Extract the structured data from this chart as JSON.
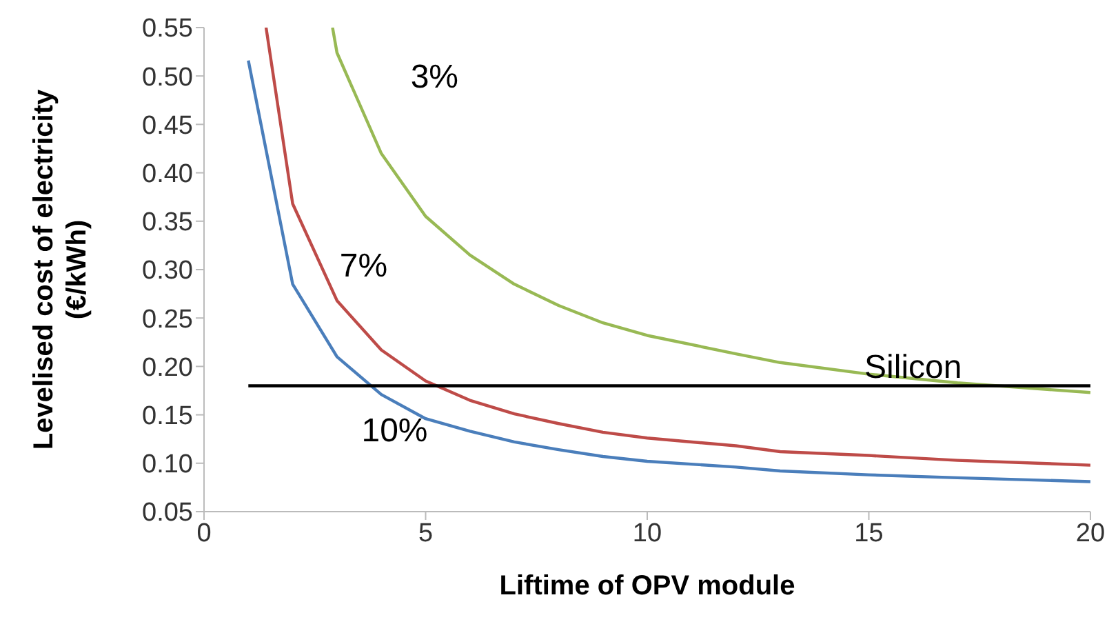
{
  "chart_data": {
    "type": "line",
    "xlabel": "Liftime of OPV module",
    "ylabel": "Levelised cost of electricity (€/kWh)",
    "xlim": [
      0,
      20
    ],
    "xticks": [
      0,
      5,
      10,
      15,
      20
    ],
    "ylim": [
      0.05,
      0.55
    ],
    "yticks": [
      {
        "value": 0.05,
        "label": "0.05"
      },
      {
        "value": 0.1,
        "label": "0.10"
      },
      {
        "value": 0.15,
        "label": "0.15"
      },
      {
        "value": 0.2,
        "label": "0.20"
      },
      {
        "value": 0.25,
        "label": "0.25"
      },
      {
        "value": 0.3,
        "label": "0.30"
      },
      {
        "value": 0.35,
        "label": "0.35"
      },
      {
        "value": 0.4,
        "label": "0.40"
      },
      {
        "value": 0.45,
        "label": "0.45"
      },
      {
        "value": 0.5,
        "label": "0.50"
      },
      {
        "value": 0.55,
        "label": "0.55"
      }
    ],
    "grid": false,
    "legend": false,
    "marker": "none",
    "line_style": "solid",
    "series": [
      {
        "name": "10%",
        "color": "#4a7ebb",
        "x": [
          1,
          2,
          3,
          4,
          5,
          6,
          7,
          8,
          9,
          10,
          12,
          13,
          15,
          17,
          20
        ],
        "values": [
          0.516,
          0.285,
          0.21,
          0.171,
          0.146,
          0.133,
          0.122,
          0.114,
          0.107,
          0.102,
          0.096,
          0.092,
          0.088,
          0.085,
          0.081
        ]
      },
      {
        "name": "7%",
        "color": "#be4b48",
        "x": [
          1.4,
          2,
          3,
          4,
          5,
          6,
          7,
          8,
          9,
          10,
          12,
          13,
          15,
          17,
          20
        ],
        "values": [
          0.55,
          0.368,
          0.268,
          0.217,
          0.185,
          0.165,
          0.151,
          0.141,
          0.132,
          0.126,
          0.118,
          0.112,
          0.108,
          0.103,
          0.098
        ]
      },
      {
        "name": "3%",
        "color": "#98b954",
        "x": [
          2.9,
          3,
          4,
          5,
          6,
          7,
          8,
          9,
          10,
          12,
          13,
          15,
          17,
          20
        ],
        "values": [
          0.55,
          0.524,
          0.42,
          0.355,
          0.315,
          0.285,
          0.263,
          0.245,
          0.232,
          0.213,
          0.204,
          0.192,
          0.183,
          0.173
        ]
      },
      {
        "name": "Silicon",
        "color": "#000000",
        "x": [
          1,
          20
        ],
        "values": [
          0.18,
          0.18
        ]
      }
    ]
  }
}
